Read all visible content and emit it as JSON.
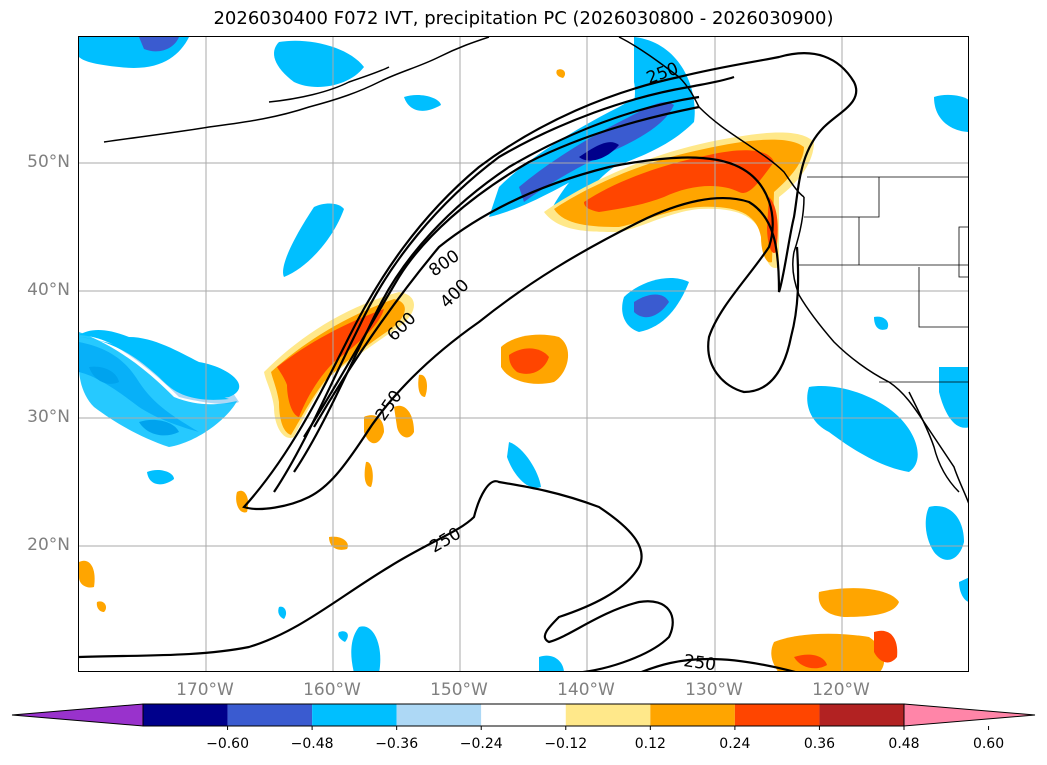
{
  "title": "2026030400 F072 IVT, precipitation PC (2026030800 - 2026030900)",
  "lat_labels": [
    "50°N",
    "40°N",
    "30°N",
    "20°N"
  ],
  "lon_labels": [
    "170°W",
    "160°W",
    "150°W",
    "140°W",
    "130°W",
    "120°W"
  ],
  "ivt_contour_labels": [
    "800",
    "600",
    "400",
    "250",
    "250",
    "250",
    "250"
  ],
  "colorbar": {
    "ticks": [
      "−0.60",
      "−0.48",
      "−0.36",
      "−0.24",
      "−0.12",
      "0.12",
      "0.24",
      "0.36",
      "0.48",
      "0.60"
    ],
    "colors": [
      "#9932cc",
      "#00008b",
      "#3a5bd0",
      "#00bfff",
      "#add8f5",
      "#ffffff",
      "#ffe88a",
      "#ffa500",
      "#ff4500",
      "#b22222",
      "#ff85a8"
    ],
    "extend": "both"
  },
  "colors": {
    "gridline": "#aaaaaa",
    "tick_label": "#808080",
    "contour": "#000000"
  }
}
